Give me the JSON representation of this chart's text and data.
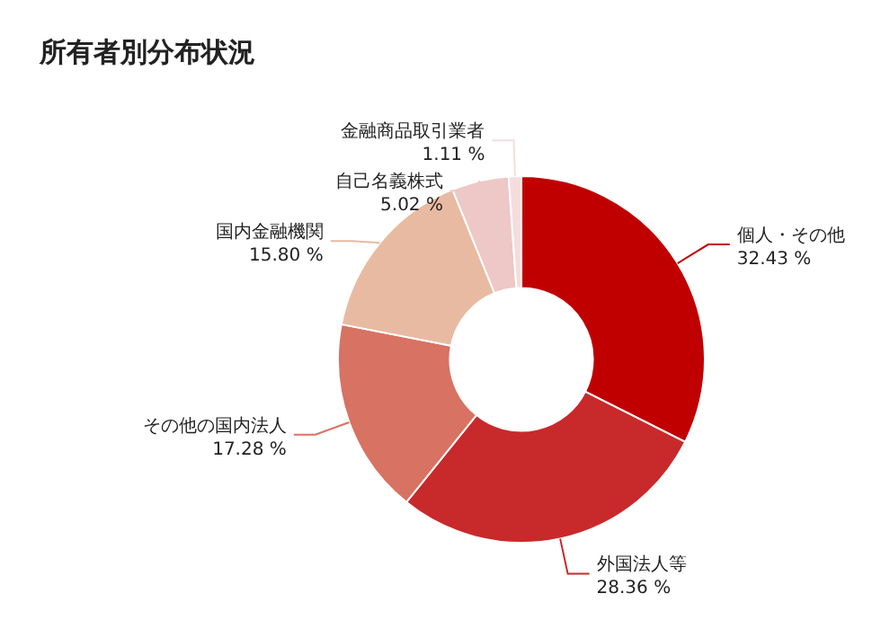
{
  "chart_data": {
    "type": "donut",
    "title": "所有者別分布状況",
    "categories": [
      "個人・その他",
      "外国法人等",
      "その他の国内法人",
      "国内金融機関",
      "自己名義株式",
      "金融商品取引業者"
    ],
    "values": [
      32.43,
      28.36,
      17.28,
      15.8,
      5.02,
      1.11
    ],
    "value_labels": [
      "32.43 %",
      "28.36 %",
      "17.28 %",
      "15.80 %",
      "5.02 %",
      "1.11 %"
    ],
    "colors": [
      "#c00000",
      "#c8292b",
      "#d87262",
      "#e8baa1",
      "#eec7c7",
      "#f5dddd"
    ]
  }
}
